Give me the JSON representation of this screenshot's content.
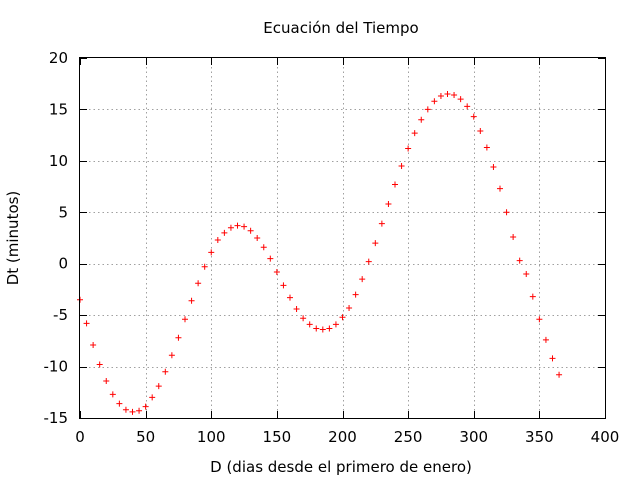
{
  "chart_data": {
    "type": "scatter",
    "title": "Ecuación del Tiempo",
    "xlabel": "D (dias desde el primero de enero)",
    "ylabel": "Dt (minutos)",
    "xlim": [
      0,
      400
    ],
    "ylim": [
      -15,
      20
    ],
    "xticks": [
      0,
      50,
      100,
      150,
      200,
      250,
      300,
      350,
      400
    ],
    "yticks": [
      -15,
      -10,
      -5,
      0,
      5,
      10,
      15,
      20
    ],
    "xtick_labels": [
      "0",
      "50",
      "100",
      "150",
      "200",
      "250",
      "300",
      "350",
      "400"
    ],
    "ytick_labels": [
      "-15",
      "-10",
      "-5",
      "0",
      "5",
      "10",
      "15",
      "20"
    ],
    "grid": true,
    "marker": "+",
    "color": "#ff0000",
    "series": [
      {
        "x": [
          0,
          5,
          10,
          15,
          20,
          25,
          30,
          35,
          40,
          45,
          50,
          55,
          60,
          65,
          70,
          75,
          80,
          85,
          90,
          95,
          100,
          105,
          110,
          115,
          120,
          125,
          130,
          135,
          140,
          145,
          150,
          155,
          160,
          165,
          170,
          175,
          180,
          185,
          190,
          195,
          200,
          205,
          210,
          215,
          220,
          225,
          230,
          235,
          240,
          245,
          250,
          255,
          260,
          265,
          270,
          275,
          280,
          285,
          290,
          295,
          300,
          305,
          310,
          315,
          320,
          325,
          330,
          335,
          340,
          345,
          350,
          355,
          360,
          365
        ],
        "y": [
          -3.5,
          -5.8,
          -7.9,
          -9.8,
          -11.4,
          -12.7,
          -13.6,
          -14.2,
          -14.4,
          -14.3,
          -13.9,
          -13.0,
          -11.9,
          -10.5,
          -8.9,
          -7.2,
          -5.4,
          -3.6,
          -1.9,
          -0.3,
          1.1,
          2.3,
          3.0,
          3.5,
          3.7,
          3.6,
          3.2,
          2.5,
          1.6,
          0.5,
          -0.8,
          -2.1,
          -3.3,
          -4.4,
          -5.3,
          -5.9,
          -6.3,
          -6.4,
          -6.3,
          -5.9,
          -5.2,
          -4.3,
          -3.0,
          -1.5,
          0.2,
          2.0,
          3.9,
          5.8,
          7.7,
          9.5,
          11.2,
          12.7,
          14.0,
          15.0,
          15.8,
          16.3,
          16.5,
          16.4,
          16.0,
          15.3,
          14.3,
          12.9,
          11.3,
          9.4,
          7.3,
          5.0,
          2.6,
          0.3,
          -1.0,
          -3.2,
          -5.4,
          -7.4,
          -9.2,
          -10.8
        ]
      }
    ]
  }
}
